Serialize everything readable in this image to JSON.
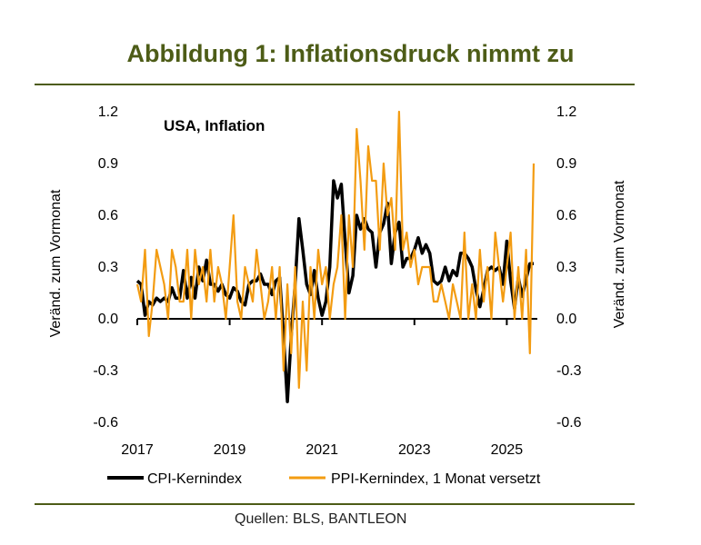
{
  "title": "Abbildung 1: Inflationsdruck nimmt zu",
  "source": "Quellen: BLS, BANTLEON",
  "colors": {
    "title": "#4d5c17",
    "cpi": "#000000",
    "ppi": "#f39c12",
    "rule": "#4d5c17"
  },
  "chart_data": {
    "type": "line",
    "title": "USA, Inflation",
    "ylabel_left": "Veränd. zum Vormonat",
    "ylabel_right": "Veränd. zum Vormonat",
    "ylim": [
      -0.6,
      1.2
    ],
    "yticks": [
      "1.2",
      "0.9",
      "0.6",
      "0.3",
      "0.0",
      "-0.3",
      "-0.6"
    ],
    "xticks": [
      "2017",
      "2019",
      "2021",
      "2023",
      "2025"
    ],
    "grid": false,
    "legend": "bottom",
    "x": [
      "2017-01",
      "2017-02",
      "2017-03",
      "2017-04",
      "2017-05",
      "2017-06",
      "2017-07",
      "2017-08",
      "2017-09",
      "2017-10",
      "2017-11",
      "2017-12",
      "2018-01",
      "2018-02",
      "2018-03",
      "2018-04",
      "2018-05",
      "2018-06",
      "2018-07",
      "2018-08",
      "2018-09",
      "2018-10",
      "2018-11",
      "2018-12",
      "2019-01",
      "2019-02",
      "2019-03",
      "2019-04",
      "2019-05",
      "2019-06",
      "2019-07",
      "2019-08",
      "2019-09",
      "2019-10",
      "2019-11",
      "2019-12",
      "2020-01",
      "2020-02",
      "2020-03",
      "2020-04",
      "2020-05",
      "2020-06",
      "2020-07",
      "2020-08",
      "2020-09",
      "2020-10",
      "2020-11",
      "2020-12",
      "2021-01",
      "2021-02",
      "2021-03",
      "2021-04",
      "2021-05",
      "2021-06",
      "2021-07",
      "2021-08",
      "2021-09",
      "2021-10",
      "2021-11",
      "2021-12",
      "2022-01",
      "2022-02",
      "2022-03",
      "2022-04",
      "2022-05",
      "2022-06",
      "2022-07",
      "2022-08",
      "2022-09",
      "2022-10",
      "2022-11",
      "2022-12",
      "2023-01",
      "2023-02",
      "2023-03",
      "2023-04",
      "2023-05",
      "2023-06",
      "2023-07",
      "2023-08",
      "2023-09",
      "2023-10",
      "2023-11",
      "2023-12",
      "2024-01",
      "2024-02",
      "2024-03",
      "2024-04",
      "2024-05",
      "2024-06",
      "2024-07",
      "2024-08",
      "2024-09",
      "2024-10",
      "2024-11",
      "2024-12",
      "2025-01",
      "2025-02",
      "2025-03",
      "2025-04",
      "2025-05",
      "2025-06",
      "2025-07",
      "2025-08"
    ],
    "series": [
      {
        "name": "CPI-Kernindex",
        "values": [
          0.22,
          0.2,
          0.02,
          0.1,
          0.08,
          0.12,
          0.1,
          0.12,
          0.1,
          0.18,
          0.12,
          0.12,
          0.28,
          0.12,
          0.24,
          0.12,
          0.3,
          0.22,
          0.34,
          0.2,
          0.2,
          0.16,
          0.2,
          0.14,
          0.12,
          0.18,
          0.16,
          0.1,
          0.08,
          0.2,
          0.22,
          0.22,
          0.26,
          0.2,
          0.2,
          0.14,
          0.22,
          0.24,
          -0.1,
          -0.48,
          -0.1,
          0.2,
          0.58,
          0.4,
          0.2,
          0.14,
          0.28,
          0.12,
          0.02,
          0.1,
          0.3,
          0.8,
          0.7,
          0.78,
          0.45,
          0.15,
          0.25,
          0.6,
          0.52,
          0.58,
          0.52,
          0.5,
          0.3,
          0.5,
          0.55,
          0.67,
          0.32,
          0.5,
          0.56,
          0.3,
          0.35,
          0.35,
          0.4,
          0.47,
          0.38,
          0.43,
          0.38,
          0.22,
          0.2,
          0.22,
          0.3,
          0.22,
          0.28,
          0.25,
          0.38,
          0.38,
          0.35,
          0.3,
          0.17,
          0.07,
          0.17,
          0.28,
          0.3,
          0.28,
          0.3,
          0.2,
          0.45,
          0.22,
          0.06,
          0.24,
          0.13,
          0.23,
          0.32,
          0.32
        ]
      },
      {
        "name": "PPI-Kernindex, 1 Monat versetzt",
        "values": [
          0.2,
          0.1,
          0.4,
          -0.1,
          0.1,
          0.4,
          0.3,
          0.2,
          0.0,
          0.4,
          0.3,
          0.1,
          0.1,
          0.4,
          0.0,
          0.4,
          0.2,
          0.3,
          0.1,
          0.4,
          0.1,
          0.3,
          0.2,
          0.0,
          0.3,
          0.6,
          0.1,
          0.0,
          0.3,
          0.2,
          0.1,
          0.4,
          0.2,
          0.0,
          0.1,
          0.3,
          0.0,
          0.3,
          -0.3,
          0.2,
          -0.2,
          0.3,
          -0.4,
          0.1,
          -0.3,
          0.3,
          0.0,
          0.4,
          0.2,
          0.3,
          0.0,
          0.2,
          0.3,
          0.6,
          0.0,
          0.6,
          0.3,
          1.1,
          0.8,
          0.4,
          1.0,
          0.8,
          0.8,
          0.4,
          0.9,
          0.6,
          0.7,
          0.4,
          1.2,
          0.4,
          0.5,
          0.3,
          0.4,
          0.2,
          0.3,
          0.3,
          0.3,
          0.1,
          0.1,
          0.2,
          0.1,
          0.0,
          0.2,
          0.1,
          0.0,
          0.5,
          0.0,
          0.2,
          0.0,
          0.4,
          0.1,
          0.3,
          0.0,
          0.5,
          0.3,
          0.1,
          0.3,
          0.5,
          0.0,
          0.3,
          0.0,
          0.4,
          -0.2,
          0.9
        ]
      }
    ]
  }
}
